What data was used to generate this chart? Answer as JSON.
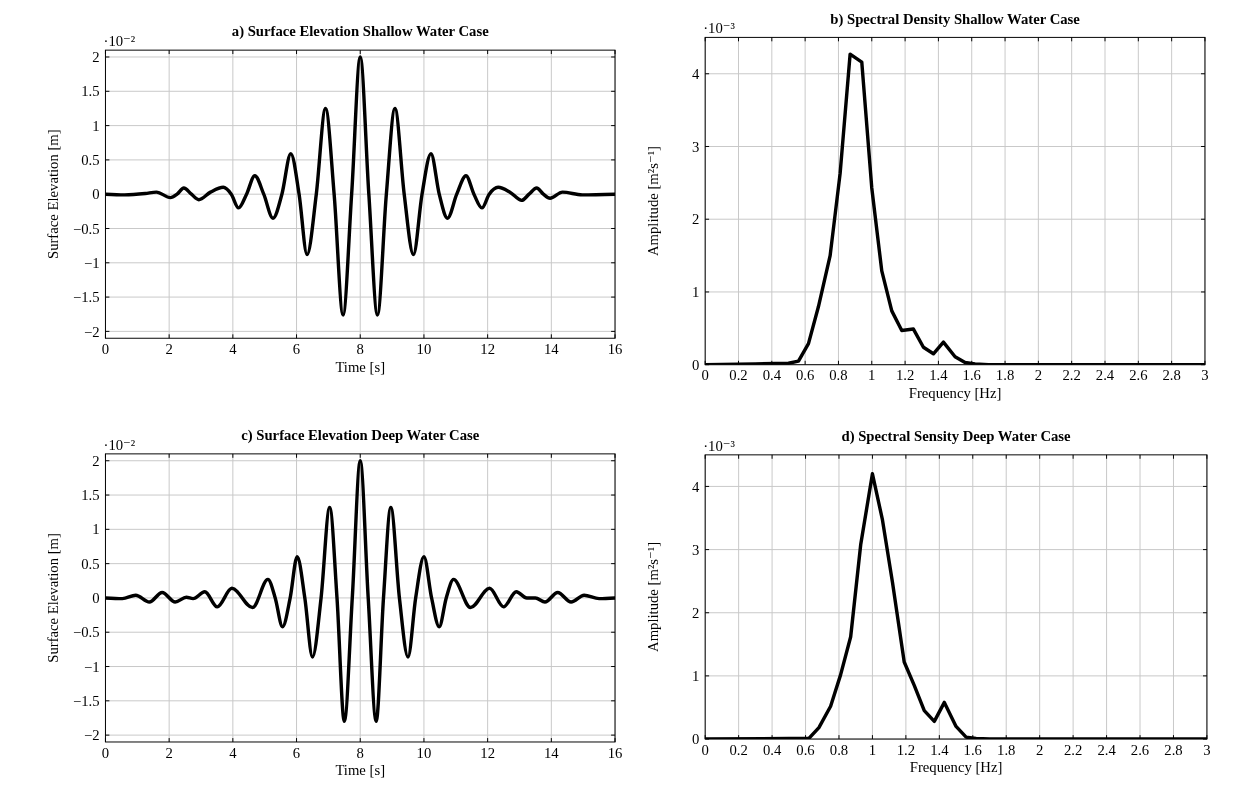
{
  "chart_data": [
    {
      "type": "line",
      "title": "a) Surface Elevation Shallow Water Case",
      "xlabel": "Time [s]",
      "ylabel": "Surface Elevation [m]",
      "annotations": [
        "·10⁻²"
      ],
      "xlim": [
        0,
        16
      ],
      "ylim": [
        -2.1,
        2.1
      ],
      "xticks": [
        0,
        2,
        4,
        6,
        8,
        10,
        12,
        14,
        16
      ],
      "yticks": [
        -2,
        -1.5,
        -1,
        -0.5,
        0,
        0.5,
        1,
        1.5,
        2
      ],
      "grid": true,
      "series": [
        {
          "color": "#000000",
          "x": [
            0,
            0.6,
            1.25,
            1.6,
            2.04,
            2.25,
            2.46,
            2.7,
            2.93,
            3.3,
            3.7,
            3.95,
            4.18,
            4.43,
            4.69,
            4.97,
            5.26,
            5.54,
            5.82,
            6.08,
            6.33,
            6.62,
            6.91,
            7.18,
            7.46,
            7.73,
            8,
            8.27,
            8.54,
            8.82,
            9.09,
            9.38,
            9.67,
            9.94,
            10.22,
            10.48,
            10.74,
            11.03,
            11.32,
            11.57,
            11.82,
            12.05,
            12.33,
            12.7,
            13.07,
            13.3,
            13.54,
            13.75,
            13.96,
            14.35,
            14.97,
            16
          ],
          "values": [
            0,
            -0.01,
            0.01,
            0.03,
            -0.05,
            0,
            0.09,
            0,
            -0.08,
            0.03,
            0.1,
            0,
            -0.2,
            0,
            0.27,
            0,
            -0.35,
            0,
            0.59,
            0,
            -0.88,
            0,
            1.25,
            0,
            -1.76,
            0,
            2,
            0,
            -1.76,
            0,
            1.25,
            0,
            -0.88,
            0,
            0.59,
            0,
            -0.35,
            0,
            0.27,
            0,
            -0.2,
            0,
            0.1,
            0.03,
            -0.09,
            0,
            0.09,
            0,
            -0.06,
            0.03,
            -0.01,
            0
          ]
        }
      ]
    },
    {
      "type": "line",
      "title": "b) Spectral Density Shallow Water Case",
      "xlabel": "Frequency [Hz]",
      "ylabel": "Amplitude [m²s⁻¹]",
      "annotations": [
        "·10⁻³"
      ],
      "xlim": [
        0,
        3
      ],
      "ylim": [
        0,
        4.5
      ],
      "xticks": [
        0,
        0.2,
        0.4,
        0.6,
        0.8,
        1,
        1.2,
        1.4,
        1.6,
        1.8,
        2,
        2.2,
        2.4,
        2.6,
        2.8,
        3
      ],
      "yticks": [
        0,
        1,
        2,
        3,
        4
      ],
      "grid": true,
      "series": [
        {
          "color": "#000000",
          "x": [
            0,
            0.3,
            0.5,
            0.56,
            0.62,
            0.68,
            0.75,
            0.81,
            0.87,
            0.94,
            1,
            1.06,
            1.12,
            1.18,
            1.25,
            1.31,
            1.37,
            1.43,
            1.5,
            1.56,
            1.62,
            1.7,
            3
          ],
          "values": [
            0,
            0.01,
            0.02,
            0.05,
            0.29,
            0.8,
            1.5,
            2.63,
            4.27,
            4.16,
            2.43,
            1.29,
            0.74,
            0.47,
            0.49,
            0.24,
            0.15,
            0.31,
            0.11,
            0.03,
            0.01,
            0,
            0
          ]
        }
      ]
    },
    {
      "type": "line",
      "title": "c) Surface Elevation Deep Water Case",
      "xlabel": "Time [s]",
      "ylabel": "Surface Elevation [m]",
      "annotations": [
        "·10⁻²"
      ],
      "xlim": [
        0,
        16
      ],
      "ylim": [
        -2.1,
        2.1
      ],
      "xticks": [
        0,
        2,
        4,
        6,
        8,
        10,
        12,
        14,
        16
      ],
      "yticks": [
        -2,
        -1.5,
        -1,
        -0.5,
        0,
        0.5,
        1,
        1.5,
        2
      ],
      "grid": true,
      "series": [
        {
          "color": "#000000",
          "x": [
            0,
            0.53,
            0.95,
            1.38,
            1.78,
            2.19,
            2.54,
            2.75,
            3.12,
            3.51,
            3.97,
            4.62,
            5.1,
            5.33,
            5.56,
            5.8,
            6.02,
            6.26,
            6.5,
            6.77,
            7.04,
            7.27,
            7.5,
            7.75,
            8,
            8.25,
            8.5,
            8.73,
            8.96,
            9.23,
            9.5,
            9.74,
            10,
            10.24,
            10.48,
            10.7,
            10.93,
            11.46,
            12.06,
            12.5,
            12.9,
            13.23,
            13.5,
            13.8,
            14.2,
            14.62,
            15.03,
            15.5,
            16
          ],
          "values": [
            0,
            -0.01,
            0.04,
            -0.06,
            0.08,
            -0.06,
            0.01,
            -0.01,
            0.09,
            -0.13,
            0.14,
            -0.14,
            0.27,
            0,
            -0.42,
            0,
            0.6,
            0,
            -0.86,
            0,
            1.32,
            0,
            -1.8,
            0,
            2,
            0,
            -1.8,
            0,
            1.32,
            0,
            -0.86,
            0,
            0.6,
            0,
            -0.42,
            0,
            0.27,
            -0.14,
            0.14,
            -0.13,
            0.09,
            0,
            0,
            -0.06,
            0.08,
            -0.06,
            0.04,
            -0.01,
            0
          ]
        }
      ]
    },
    {
      "type": "line",
      "title": "d) Spectral Sensity Deep Water Case",
      "xlabel": "Frequency [Hz]",
      "ylabel": "Amplitude [m²s⁻¹]",
      "annotations": [
        "·10⁻³"
      ],
      "xlim": [
        0,
        3
      ],
      "ylim": [
        0,
        4.5
      ],
      "xticks": [
        0,
        0.2,
        0.4,
        0.6,
        0.8,
        1,
        1.2,
        1.4,
        1.6,
        1.8,
        2,
        2.2,
        2.4,
        2.6,
        2.8,
        3
      ],
      "yticks": [
        0,
        1,
        2,
        3,
        4
      ],
      "grid": true,
      "series": [
        {
          "color": "#000000",
          "x": [
            0,
            0.5,
            0.62,
            0.68,
            0.75,
            0.81,
            0.87,
            0.93,
            1,
            1.06,
            1.12,
            1.19,
            1.25,
            1.31,
            1.37,
            1.43,
            1.5,
            1.56,
            1.62,
            1.7,
            3
          ],
          "values": [
            0,
            0.01,
            0.01,
            0.18,
            0.52,
            1.02,
            1.62,
            3.08,
            4.2,
            3.47,
            2.48,
            1.22,
            0.85,
            0.45,
            0.28,
            0.58,
            0.2,
            0.03,
            0.01,
            0,
            0
          ]
        }
      ]
    }
  ]
}
